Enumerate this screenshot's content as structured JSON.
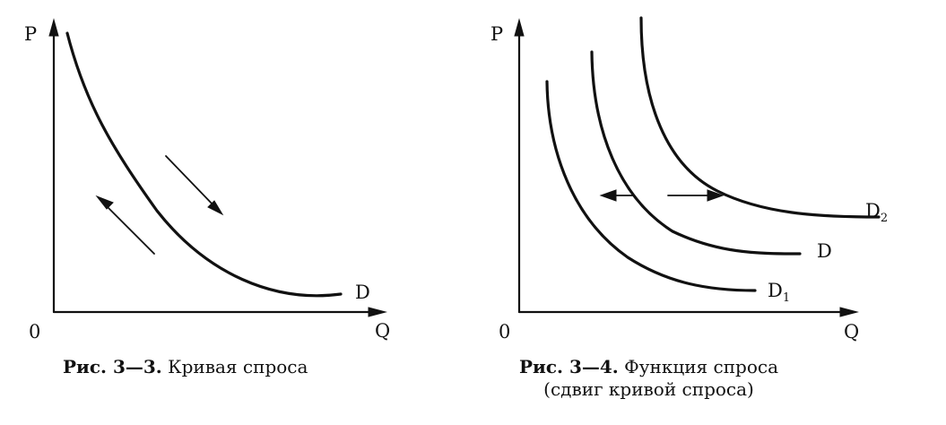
{
  "figures": [
    {
      "axis_y_label": "P",
      "axis_x_label": "Q",
      "origin_label": "0",
      "curve_label": "D",
      "caption_bold": "Рис. 3—3.",
      "caption_text": " Кривая спроса"
    },
    {
      "axis_y_label": "P",
      "axis_x_label": "Q",
      "origin_label": "0",
      "curve_labels": [
        {
          "main": "D",
          "subscript": "2"
        },
        {
          "main": "D",
          "subscript": ""
        },
        {
          "main": "D",
          "subscript": "1"
        }
      ],
      "caption_bold": "Рис. 3—4.",
      "caption_text": " Функция спроса",
      "caption_line2": "(сдвиг кривой спроса)"
    }
  ]
}
